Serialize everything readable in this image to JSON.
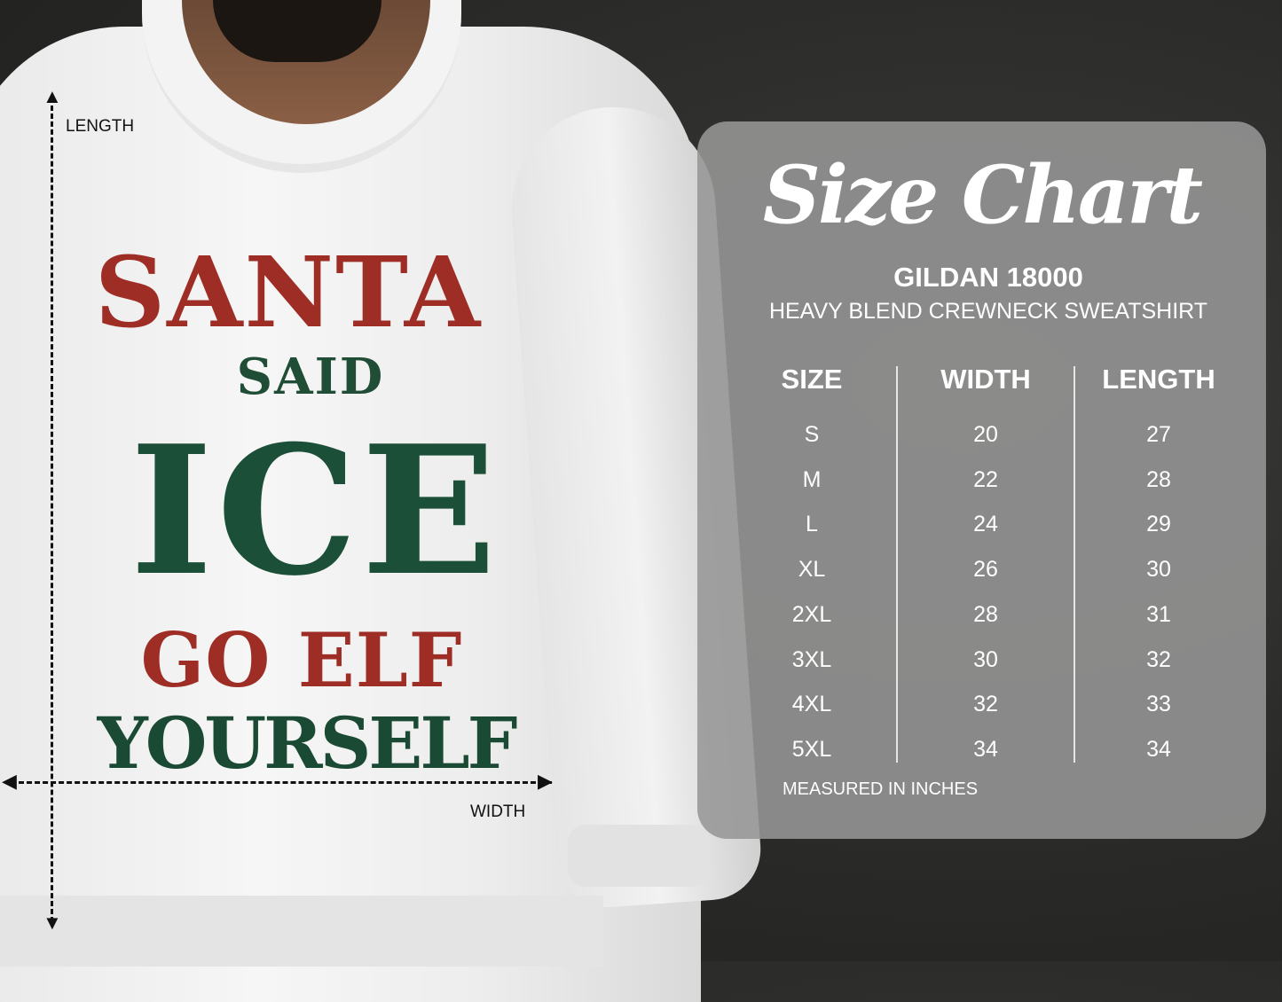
{
  "product_design": {
    "line1": "SANTA",
    "line2": "SAID",
    "line3": "ICE",
    "line4": "GO ELF",
    "line5": "YOURSELF",
    "colors": {
      "red": "#9e2e25",
      "green": "#1c4f37",
      "shirt": "#f2f2f2"
    }
  },
  "measurements": {
    "length_label": "LENGTH",
    "width_label": "WIDTH"
  },
  "size_chart": {
    "title": "Size Chart",
    "model": "GILDAN 18000",
    "description": "HEAVY BLEND CREWNECK SWEATSHIRT",
    "columns": [
      "SIZE",
      "WIDTH",
      "LENGTH"
    ],
    "rows": [
      [
        "S",
        "20",
        "27"
      ],
      [
        "M",
        "22",
        "28"
      ],
      [
        "L",
        "24",
        "29"
      ],
      [
        "XL",
        "26",
        "30"
      ],
      [
        "2XL",
        "28",
        "31"
      ],
      [
        "3XL",
        "30",
        "32"
      ],
      [
        "4XL",
        "32",
        "33"
      ],
      [
        "5XL",
        "34",
        "34"
      ]
    ],
    "note": "MEASURED IN INCHES"
  }
}
